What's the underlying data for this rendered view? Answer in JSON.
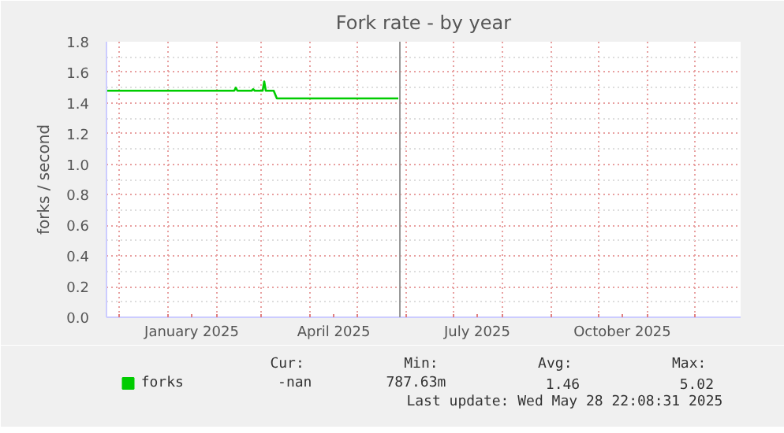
{
  "chart_data": {
    "type": "line",
    "title": "Fork rate - by year",
    "ylabel": "forks / second",
    "x": [
      "2024-11-23",
      "2025-02-12",
      "2025-02-13",
      "2025-02-14",
      "2025-02-23",
      "2025-02-24",
      "2025-02-25",
      "2025-03-02",
      "2025-03-03",
      "2025-03-04",
      "2025-03-09",
      "2025-03-11",
      "2025-05-27"
    ],
    "series": [
      {
        "name": "forks",
        "color": "#00cc00",
        "values": [
          1.48,
          1.48,
          1.5,
          1.48,
          1.48,
          1.49,
          1.48,
          1.48,
          1.54,
          1.48,
          1.48,
          1.43,
          1.43
        ]
      }
    ],
    "xlim": [
      "2024-11-23",
      "2025-12-30"
    ],
    "xticks": [
      {
        "value": "2024-12-01",
        "label": null
      },
      {
        "value": "2025-01-01",
        "label": null
      },
      {
        "value": "2025-01-16",
        "label": "January 2025"
      },
      {
        "value": "2025-02-01",
        "label": null
      },
      {
        "value": "2025-03-01",
        "label": null
      },
      {
        "value": "2025-04-01",
        "label": null
      },
      {
        "value": "2025-04-16",
        "label": "April 2025"
      },
      {
        "value": "2025-05-01",
        "label": null
      },
      {
        "value": "2025-06-01",
        "label": null
      },
      {
        "value": "2025-07-01",
        "label": null
      },
      {
        "value": "2025-07-16",
        "label": "July 2025"
      },
      {
        "value": "2025-08-01",
        "label": null
      },
      {
        "value": "2025-09-01",
        "label": null
      },
      {
        "value": "2025-10-01",
        "label": null
      },
      {
        "value": "2025-10-16",
        "label": "October 2025"
      },
      {
        "value": "2025-11-01",
        "label": null
      },
      {
        "value": "2025-12-01",
        "label": null
      }
    ],
    "ylim": [
      0,
      1.8
    ],
    "yticks": [
      {
        "value": 0,
        "label": "0.0"
      },
      0.2,
      0.4,
      0.6,
      0.8,
      {
        "value": 1,
        "label": "1.0"
      },
      1.2,
      1.4,
      1.6,
      1.8
    ],
    "ref_lines": [
      {
        "axis": "x",
        "value": "2025-05-28",
        "label": null,
        "color": "#999999"
      }
    ],
    "grid": true,
    "legend": "bottom left",
    "marker": "none",
    "line_style": "solid",
    "annotations": [
      "Cur:",
      "Min:",
      "Avg:",
      "Max:",
      "-nan",
      "787.63m",
      "1.46",
      "5.02",
      "Last update: Wed May 28 22:08:31 2025"
    ]
  }
}
